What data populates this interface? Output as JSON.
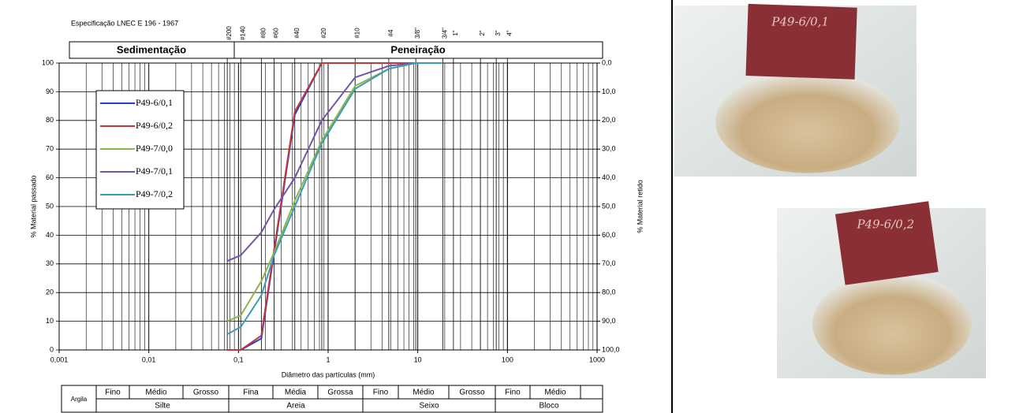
{
  "chart_data": {
    "type": "line",
    "spec": "Especificação LNEC E 196 - 1967",
    "section_left": "Sedimentação",
    "section_right": "Peneiração",
    "xlabel": "Diâmetro das partículas (mm)",
    "ylabel": "% Material passado",
    "y2label": "% Material retido",
    "log_x": true,
    "grid": true,
    "xlim": [
      0.001,
      1000
    ],
    "xticks": [
      {
        "value": 0.001,
        "label": "0,001"
      },
      {
        "value": 0.01,
        "label": "0,01"
      },
      {
        "value": 0.1,
        "label": "0,1"
      },
      1,
      10,
      100,
      1000
    ],
    "ylim": [
      0,
      100
    ],
    "yticks": [
      0,
      10,
      20,
      30,
      40,
      50,
      60,
      70,
      80,
      90,
      100
    ],
    "y2lim": [
      100,
      0
    ],
    "y2ticks": [
      {
        "value": 0,
        "label": "0,0"
      },
      {
        "value": 10,
        "label": "10,0"
      },
      {
        "value": 20,
        "label": "20,0"
      },
      {
        "value": 30,
        "label": "30,0"
      },
      {
        "value": 40,
        "label": "40,0"
      },
      {
        "value": 50,
        "label": "50,0"
      },
      {
        "value": 60,
        "label": "60,0"
      },
      {
        "value": 70,
        "label": "70,0"
      },
      {
        "value": 80,
        "label": "80,0"
      },
      {
        "value": 90,
        "label": "90,0"
      },
      {
        "value": 100,
        "label": "100,0"
      }
    ],
    "sieves": [
      {
        "label": "#200",
        "size": 0.075
      },
      {
        "label": "#140",
        "size": 0.106
      },
      {
        "label": "#80",
        "size": 0.18
      },
      {
        "label": "#60",
        "size": 0.25
      },
      {
        "label": "#40",
        "size": 0.425
      },
      {
        "label": "#20",
        "size": 0.85
      },
      {
        "label": "#10",
        "size": 2
      },
      {
        "label": "#4",
        "size": 4.75
      },
      {
        "label": "3/8\"",
        "size": 9.5
      },
      {
        "label": "3/4\"",
        "size": 19
      },
      {
        "label": "1\"",
        "size": 25
      },
      {
        "label": "2\"",
        "size": 50
      },
      {
        "label": "3\"",
        "size": 75
      },
      {
        "label": "4\"",
        "size": 100
      }
    ],
    "x": [
      0.075,
      0.106,
      0.18,
      0.25,
      0.425,
      0.85,
      2,
      4.75,
      9.5,
      19
    ],
    "series": [
      {
        "name": "P49-6/0,1",
        "color": "#1f3fd6",
        "values": [
          0,
          0,
          4,
          34,
          82,
          100,
          100,
          100,
          100,
          100
        ]
      },
      {
        "name": "P49-6/0,2",
        "color": "#c0393b",
        "values": [
          0,
          0,
          5,
          35,
          83,
          100,
          100,
          100,
          100,
          100
        ]
      },
      {
        "name": "P49-7/0,0",
        "color": "#8db54a",
        "values": [
          10,
          12,
          24,
          34,
          52,
          73,
          92,
          98,
          100,
          100
        ]
      },
      {
        "name": "P49-7/0,1",
        "color": "#7553a6",
        "values": [
          31,
          33,
          41,
          49,
          60,
          80,
          95,
          99,
          100,
          100
        ]
      },
      {
        "name": "P49-7/0,2",
        "color": "#3a9db5",
        "values": [
          5.5,
          8,
          19,
          33,
          50,
          72,
          91,
          98,
          100,
          100
        ]
      }
    ],
    "soil_classes": {
      "clay": "Argila",
      "groups": [
        {
          "name": "Silte",
          "subs": [
            "Fino",
            "Médio",
            "Grosso"
          ]
        },
        {
          "name": "Areia",
          "subs": [
            "Fina",
            "Média",
            "Grossa"
          ]
        },
        {
          "name": "Seixo",
          "subs": [
            "Fino",
            "Médio",
            "Grosso"
          ]
        },
        {
          "name": "Bloco",
          "subs": [
            "Fino",
            "Médio"
          ]
        }
      ]
    },
    "photos": [
      {
        "label": "P49-6/0,1"
      },
      {
        "label": "P49-6/0,2"
      }
    ]
  }
}
